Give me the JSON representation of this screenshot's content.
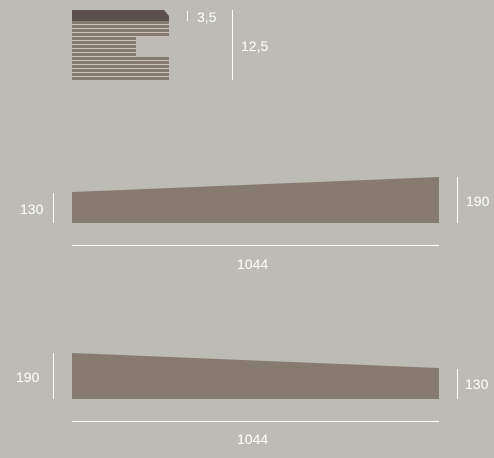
{
  "colors": {
    "background": "#bdbcb4",
    "profile_top": "#5c504a",
    "profile_body": "#877b70",
    "line": "#ffffff",
    "label": "#ffffff"
  },
  "section_detail": {
    "thickness_top_label": "3,5",
    "thickness_total_label": "12,5"
  },
  "panel_1": {
    "left_height_label": "130",
    "right_height_label": "190",
    "width_label": "1044"
  },
  "panel_2": {
    "left_height_label": "190",
    "right_height_label": "130",
    "width_label": "1044"
  }
}
